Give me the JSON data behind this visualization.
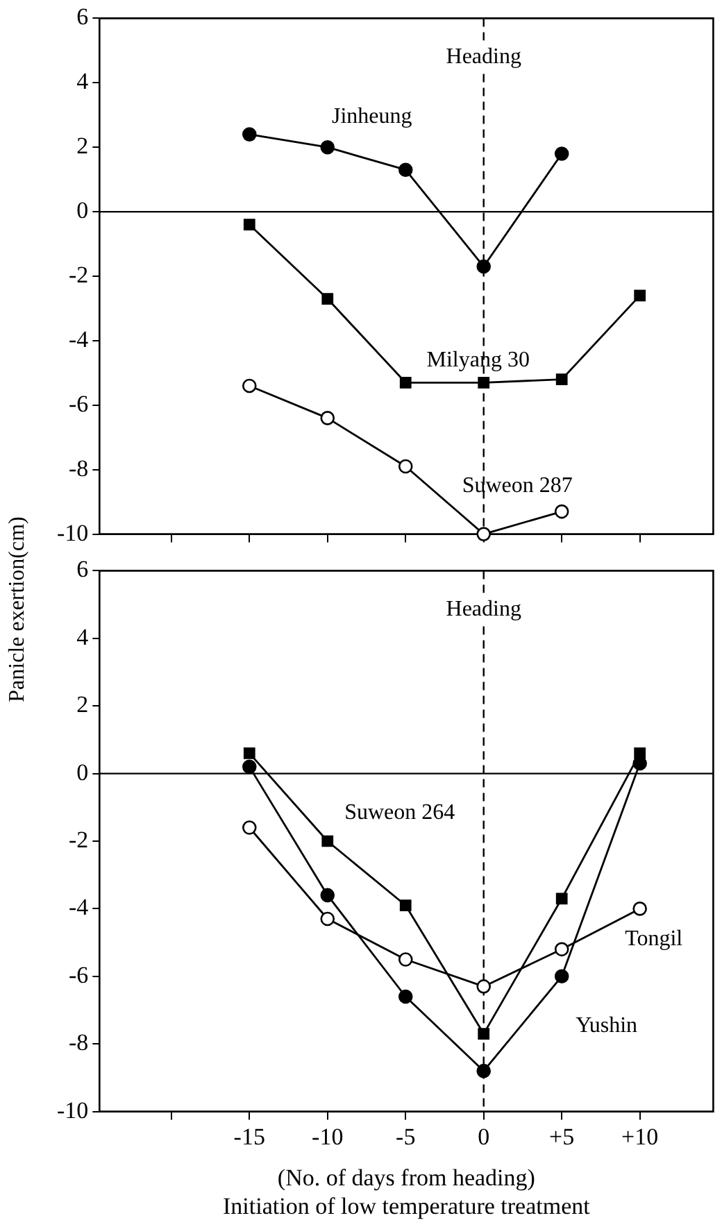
{
  "chart_data": [
    {
      "type": "line",
      "ylabel": "Panicle exertion(cm)",
      "x": [
        -15,
        -10,
        -5,
        0,
        5,
        10
      ],
      "xlim": [
        -24.6,
        14.7
      ],
      "xticks": [
        {
          "value": -20,
          "label": null
        },
        {
          "value": -15,
          "label": null
        },
        {
          "value": -10,
          "label": null
        },
        {
          "value": -5,
          "label": null
        },
        {
          "value": 0,
          "label": null
        },
        {
          "value": 5,
          "label": null
        },
        {
          "value": 10,
          "label": null
        }
      ],
      "ylim": [
        -10,
        6
      ],
      "yticks": [
        -10,
        -8,
        -6,
        -4,
        -2,
        0,
        2,
        4,
        6
      ],
      "tick_labels": "y",
      "grid": false,
      "legend": false,
      "line_style": "solid",
      "ref_lines": [
        {
          "axis": "x",
          "value": 0,
          "label": "Heading",
          "line_style": "dashed"
        },
        {
          "axis": "y",
          "value": 0,
          "label": null,
          "line_style": "solid"
        }
      ],
      "series": [
        {
          "name": "Jinheung",
          "color": "#000000",
          "marker": "circle",
          "values": [
            2.4,
            2.0,
            1.3,
            -1.7,
            1.8,
            null
          ]
        },
        {
          "name": "Milyang 30",
          "color": "#000000",
          "marker": "square",
          "values": [
            -0.4,
            -2.7,
            -5.3,
            -5.3,
            -5.2,
            -2.6
          ]
        },
        {
          "name": "Suweon 287",
          "color": "#000000",
          "marker": "circle-open",
          "values": [
            -5.4,
            -6.4,
            -7.9,
            -10.0,
            -9.3,
            null
          ]
        }
      ]
    },
    {
      "type": "line",
      "xlabel": "(No. of days from heading)\nInitiation of low temperature treatment",
      "x": [
        -15,
        -10,
        -5,
        0,
        5,
        10
      ],
      "xlim": [
        -24.6,
        14.7
      ],
      "xticks": [
        {
          "value": -20,
          "label": null
        },
        {
          "value": -15,
          "label": "-15"
        },
        {
          "value": -10,
          "label": "-10"
        },
        {
          "value": -5,
          "label": "-5"
        },
        {
          "value": 0,
          "label": "0"
        },
        {
          "value": 5,
          "label": "+5"
        },
        {
          "value": 10,
          "label": "+10"
        }
      ],
      "ylim": [
        -10,
        6
      ],
      "yticks": [
        -10,
        -8,
        -6,
        -4,
        -2,
        0,
        2,
        4,
        6
      ],
      "grid": false,
      "legend": false,
      "line_style": "solid",
      "ref_lines": [
        {
          "axis": "x",
          "value": 0,
          "label": "Heading",
          "line_style": "dashed"
        },
        {
          "axis": "y",
          "value": 0,
          "label": null,
          "line_style": "solid"
        }
      ],
      "series": [
        {
          "name": "Suweon 264",
          "color": "#000000",
          "marker": "square",
          "values": [
            0.6,
            -2.0,
            -3.9,
            -7.7,
            -3.7,
            0.6
          ]
        },
        {
          "name": "Yushin",
          "color": "#000000",
          "marker": "circle",
          "values": [
            0.2,
            -3.6,
            -6.6,
            -8.8,
            -6.0,
            0.3
          ]
        },
        {
          "name": "Tongil",
          "color": "#000000",
          "marker": "circle-open",
          "values": [
            -1.6,
            -4.3,
            -5.5,
            -6.3,
            -5.2,
            -4.0
          ]
        }
      ]
    }
  ]
}
